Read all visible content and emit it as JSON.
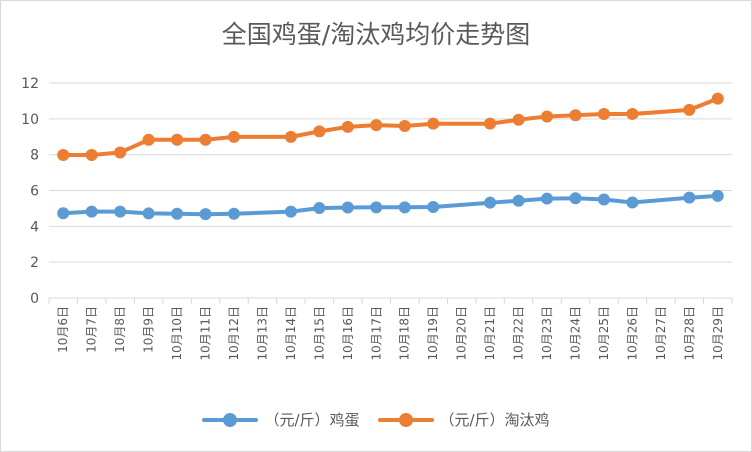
{
  "chart_data": {
    "type": "line",
    "title": "全国鸡蛋/淘汰鸡均价走势图",
    "xlabel": "",
    "ylabel": "",
    "ylim": [
      0,
      12
    ],
    "yticks": [
      0,
      2,
      4,
      6,
      8,
      10,
      12
    ],
    "grid": true,
    "legend_position": "bottom",
    "categories": [
      "10月6日",
      "10月7日",
      "10月8日",
      "10月9日",
      "10月10日",
      "10月11日",
      "10月12日",
      "10月13日",
      "10月14日",
      "10月15日",
      "10月16日",
      "10月17日",
      "10月18日",
      "10月19日",
      "10月20日",
      "10月21日",
      "10月22日",
      "10月23日",
      "10月24日",
      "10月25日",
      "10月26日",
      "10月27日",
      "10月28日",
      "10月29日"
    ],
    "series": [
      {
        "name": "（元/斤）鸡蛋",
        "color": "#5b9bd5",
        "values": [
          4.73,
          4.82,
          4.82,
          4.72,
          4.7,
          4.68,
          4.7,
          null,
          4.82,
          5.02,
          5.05,
          5.06,
          5.06,
          5.08,
          null,
          5.32,
          5.43,
          5.55,
          5.57,
          5.5,
          5.33,
          null,
          5.6,
          5.7
        ]
      },
      {
        "name": "（元/斤）淘汰鸡",
        "color": "#ed7d31",
        "values": [
          7.98,
          7.98,
          8.12,
          8.83,
          8.83,
          8.83,
          8.99,
          null,
          8.99,
          9.3,
          9.55,
          9.65,
          9.6,
          9.73,
          null,
          9.73,
          9.95,
          10.13,
          10.2,
          10.27,
          10.27,
          null,
          10.5,
          11.13
        ]
      }
    ]
  }
}
